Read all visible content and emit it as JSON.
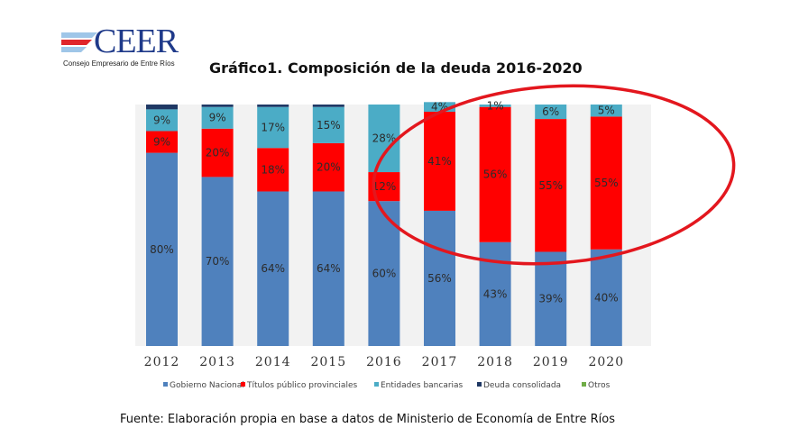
{
  "logo": {
    "name": "CEER",
    "tagline": "Consejo Empresario de Entre Ríos",
    "colors": {
      "blue": "#1f3a8a",
      "red": "#e0262b",
      "lightblue": "#9fc6e8"
    }
  },
  "title": "Gráfico1. Composición de la deuda 2016-2020",
  "source": "Fuente: Elaboración propia en base a datos de Ministerio de Economía de Entre Ríos",
  "chart_data": {
    "type": "bar",
    "stacked": true,
    "percent": true,
    "categories": [
      "2012",
      "2013",
      "2014",
      "2015",
      "2016",
      "2017",
      "2018",
      "2019",
      "2020"
    ],
    "series": [
      {
        "name": "Gobierno Nacional",
        "color": "#4f81bd",
        "values": [
          80,
          70,
          64,
          64,
          60,
          56,
          43,
          39,
          40
        ],
        "labels": [
          "80%",
          "70%",
          "64%",
          "64%",
          "60%",
          "56%",
          "43%",
          "39%",
          "40%"
        ]
      },
      {
        "name": "Títulos público provinciales",
        "color": "#ff0000",
        "values": [
          9,
          20,
          18,
          20,
          12,
          41,
          56,
          55,
          55
        ],
        "labels": [
          "9%",
          "20%",
          "18%",
          "20%",
          "12%",
          "41%",
          "56%",
          "55%",
          "55%"
        ]
      },
      {
        "name": "Entidades bancarias",
        "color": "#4bacc6",
        "values": [
          9,
          9,
          17,
          15,
          28,
          4,
          1,
          6,
          5
        ],
        "labels": [
          "9%",
          "9%",
          "17%",
          "15%",
          "28%",
          "4%",
          "1%",
          "6%",
          "5%"
        ]
      },
      {
        "name": "Deuda consolidada",
        "color": "#1f3864",
        "values": [
          2,
          1,
          1,
          1,
          0,
          0,
          0,
          0,
          0
        ],
        "labels": [
          "",
          "",
          "",
          "",
          "",
          "",
          "",
          "",
          ""
        ]
      },
      {
        "name": "Otros",
        "color": "#70ad47",
        "values": [
          0,
          0,
          0,
          0,
          0,
          0,
          0,
          0,
          0
        ],
        "labels": [
          "",
          "",
          "",
          "",
          "",
          "",
          "",
          "",
          ""
        ]
      }
    ],
    "ylim": [
      0,
      100
    ],
    "grid": false,
    "legend": "bottom",
    "annotation": {
      "shape": "ellipse",
      "color": "#e3171e",
      "highlights": [
        "2017",
        "2018",
        "2019",
        "2020"
      ]
    }
  }
}
